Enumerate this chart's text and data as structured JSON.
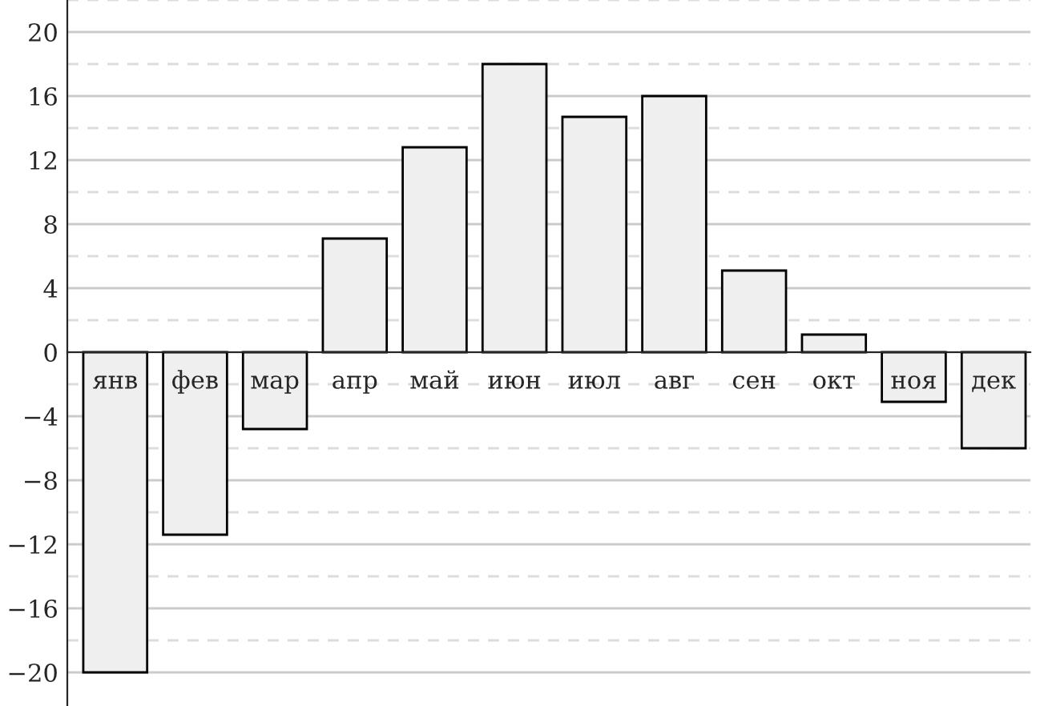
{
  "chart_data": {
    "type": "bar",
    "categories": [
      "янв",
      "фев",
      "мар",
      "апр",
      "май",
      "июн",
      "июл",
      "авг",
      "сен",
      "окт",
      "ноя",
      "дек"
    ],
    "values": [
      -20,
      -11.4,
      -4.8,
      7.1,
      12.8,
      18,
      14.7,
      16,
      5.1,
      1.1,
      -3.1,
      -6.0
    ],
    "color": "#efefef",
    "ylim": [
      -22.1,
      22
    ],
    "yticks": [
      -20,
      {
        "value": -18,
        "label": null
      },
      -16,
      {
        "value": -14,
        "label": null
      },
      -12,
      {
        "value": -10,
        "label": null
      },
      -8,
      {
        "value": -6,
        "label": null
      },
      -4,
      {
        "value": -2,
        "label": null
      },
      0,
      {
        "value": 2,
        "label": null
      },
      4,
      {
        "value": 6,
        "label": null
      },
      8,
      {
        "value": 10,
        "label": null
      },
      12,
      {
        "value": 14,
        "label": null
      },
      16,
      {
        "value": 18,
        "label": null
      },
      20,
      {
        "value": 22,
        "label": null
      }
    ],
    "grid": "y"
  }
}
